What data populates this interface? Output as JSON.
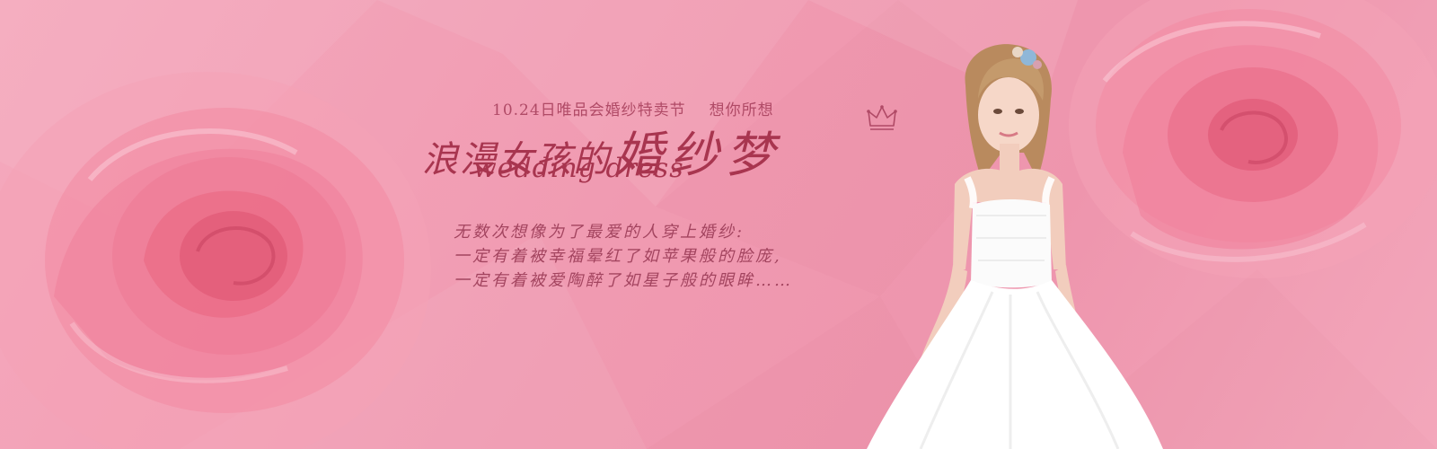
{
  "banner": {
    "promo_line": "10.24日唯品会婚纱特卖节",
    "promo_slogan": "想你所想",
    "title_cn_small": "浪漫女孩的",
    "title_cn_big": "婚纱梦",
    "title_en": "wedding dress",
    "poem": [
      "无数次想像为了最爱的人穿上婚纱:",
      "一定有着被幸福晕红了如苹果般的脸庞,",
      "一定有着被爱陶醉了如星子般的眼眸……"
    ]
  },
  "colors": {
    "background": "#f19ab2",
    "rose": "#f27a94",
    "text": "#a8354f",
    "dress": "#ffffff"
  },
  "icons": [
    "crown-icon",
    "rose-left-image",
    "rose-right-image",
    "bride-model-image"
  ]
}
